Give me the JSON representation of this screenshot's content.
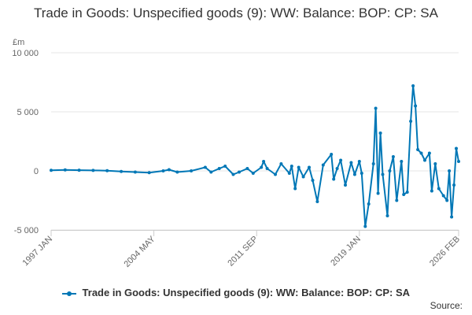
{
  "chart_data": {
    "type": "line",
    "title": "Trade in Goods: Unspecified goods (9): WW: Balance: BOP: CP: SA",
    "y_unit": "£m",
    "ylim": [
      -5000,
      10000
    ],
    "y_ticks": [
      10000,
      5000,
      0,
      -5000
    ],
    "y_tick_labels": [
      "10 000",
      "5 000",
      "0",
      "-5 000"
    ],
    "x_range": [
      "1997-01",
      "2026-02"
    ],
    "x_ticks": [
      "1997-01",
      "2004-05",
      "2011-09",
      "2019-01",
      "2026-02"
    ],
    "x_tick_labels": [
      "1997 JAN",
      "2004 MAY",
      "2011 SEP",
      "2019 JAN",
      "2026 FEB"
    ],
    "grid": "horizontal",
    "legend_position": "bottom",
    "series": [
      {
        "name": "Trade in Goods: Unspecified goods (9): WW: Balance: BOP: CP: SA",
        "color": "#0077b6",
        "points": [
          [
            "1997-01",
            50
          ],
          [
            "1998-01",
            80
          ],
          [
            "1999-01",
            60
          ],
          [
            "2000-01",
            40
          ],
          [
            "2001-01",
            20
          ],
          [
            "2002-01",
            -50
          ],
          [
            "2003-01",
            -100
          ],
          [
            "2004-01",
            -150
          ],
          [
            "2005-01",
            0
          ],
          [
            "2005-06",
            100
          ],
          [
            "2006-01",
            -100
          ],
          [
            "2007-01",
            0
          ],
          [
            "2008-01",
            300
          ],
          [
            "2008-06",
            -100
          ],
          [
            "2009-01",
            200
          ],
          [
            "2009-06",
            400
          ],
          [
            "2010-01",
            -300
          ],
          [
            "2010-06",
            -100
          ],
          [
            "2011-01",
            200
          ],
          [
            "2011-06",
            -200
          ],
          [
            "2012-01",
            300
          ],
          [
            "2012-03",
            800
          ],
          [
            "2012-06",
            200
          ],
          [
            "2013-01",
            -300
          ],
          [
            "2013-06",
            600
          ],
          [
            "2014-01",
            -200
          ],
          [
            "2014-03",
            400
          ],
          [
            "2014-06",
            -1500
          ],
          [
            "2014-09",
            300
          ],
          [
            "2015-01",
            -500
          ],
          [
            "2015-06",
            300
          ],
          [
            "2015-09",
            -800
          ],
          [
            "2016-01",
            -2600
          ],
          [
            "2016-06",
            500
          ],
          [
            "2017-01",
            1400
          ],
          [
            "2017-03",
            -700
          ],
          [
            "2017-06",
            200
          ],
          [
            "2017-09",
            900
          ],
          [
            "2018-01",
            -1200
          ],
          [
            "2018-06",
            700
          ],
          [
            "2018-09",
            -300
          ],
          [
            "2019-01",
            800
          ],
          [
            "2019-03",
            -200
          ],
          [
            "2019-06",
            -4700
          ],
          [
            "2019-09",
            -2800
          ],
          [
            "2020-01",
            600
          ],
          [
            "2020-03",
            5300
          ],
          [
            "2020-05",
            -1900
          ],
          [
            "2020-07",
            3200
          ],
          [
            "2020-09",
            -300
          ],
          [
            "2021-01",
            -3800
          ],
          [
            "2021-03",
            0
          ],
          [
            "2021-06",
            1200
          ],
          [
            "2021-09",
            -2500
          ],
          [
            "2022-01",
            800
          ],
          [
            "2022-03",
            -2000
          ],
          [
            "2022-06",
            -1800
          ],
          [
            "2022-09",
            4200
          ],
          [
            "2022-11",
            7200
          ],
          [
            "2023-01",
            5500
          ],
          [
            "2023-03",
            1800
          ],
          [
            "2023-06",
            1500
          ],
          [
            "2023-09",
            900
          ],
          [
            "2024-01",
            1500
          ],
          [
            "2024-03",
            -1700
          ],
          [
            "2024-06",
            600
          ],
          [
            "2024-09",
            -1500
          ],
          [
            "2025-01",
            -2100
          ],
          [
            "2025-04",
            -2500
          ],
          [
            "2025-06",
            0
          ],
          [
            "2025-08",
            -3900
          ],
          [
            "2025-10",
            -1200
          ],
          [
            "2025-12",
            1900
          ],
          [
            "2026-02",
            800
          ]
        ]
      }
    ]
  },
  "source_label": "Source:"
}
